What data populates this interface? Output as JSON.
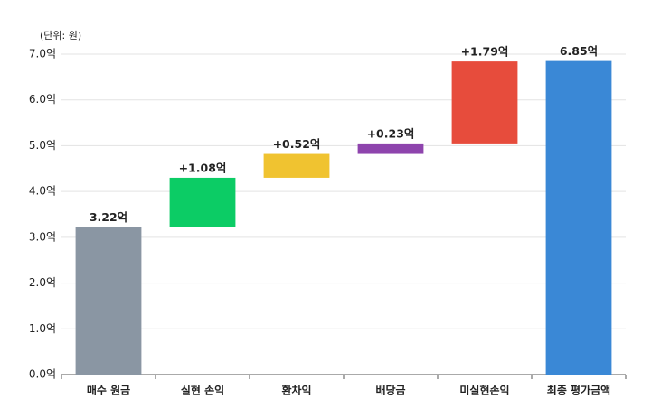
{
  "chart_data": {
    "type": "waterfall",
    "unit_label": "(단위: 원)",
    "categories": [
      "매수 원금",
      "실현 손익",
      "환차익",
      "배당금",
      "미실현손익",
      "최종 평가금액"
    ],
    "values": [
      3.22,
      1.08,
      0.52,
      0.23,
      1.79,
      6.85
    ],
    "value_labels": [
      "3.22억",
      "+1.08억",
      "+0.52억",
      "+0.23억",
      "+1.79억",
      "6.85억"
    ],
    "colors": [
      "#8a96a3",
      "#0ccc65",
      "#f0c330",
      "#8e44ad",
      "#e74c3c",
      "#3a88d6"
    ],
    "ylim": [
      0,
      7
    ],
    "yticks": [
      {
        "value": 0,
        "label": "0.0억"
      },
      {
        "value": 1,
        "label": "1.0억"
      },
      {
        "value": 2,
        "label": "2.0억"
      },
      {
        "value": 3,
        "label": "3.0억"
      },
      {
        "value": 4,
        "label": "4.0억"
      },
      {
        "value": 5,
        "label": "5.0억"
      },
      {
        "value": 6,
        "label": "6.0억"
      },
      {
        "value": 7,
        "label": "7.0억"
      }
    ],
    "grid": true
  }
}
